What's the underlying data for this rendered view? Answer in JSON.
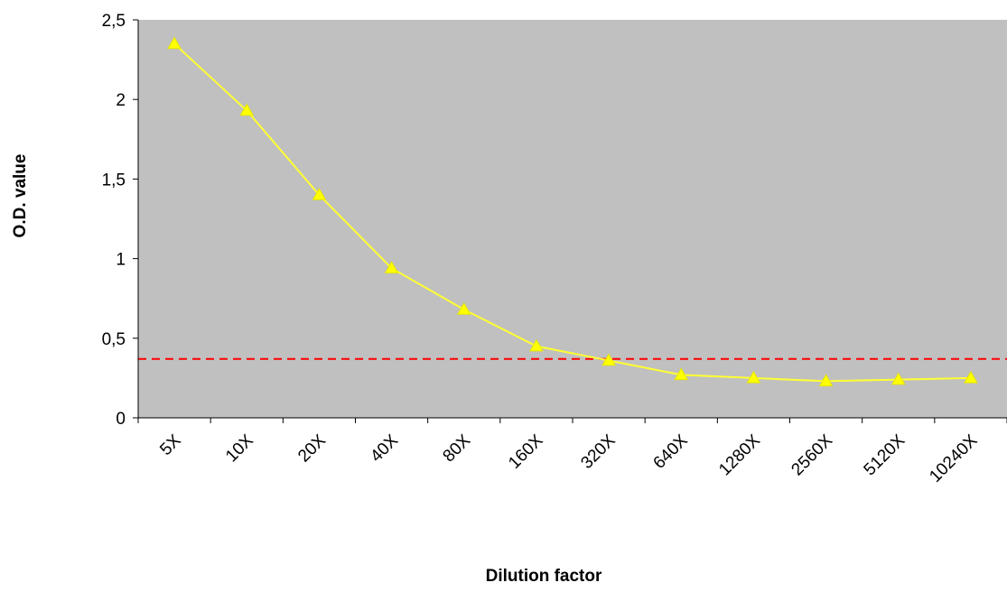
{
  "chart_data": {
    "type": "line",
    "categories": [
      "5X",
      "10X",
      "20X",
      "40X",
      "80X",
      "160X",
      "320X",
      "640X",
      "1280X",
      "2560X",
      "5120X",
      "10240X"
    ],
    "values": [
      2.35,
      1.93,
      1.4,
      0.94,
      0.68,
      0.45,
      0.36,
      0.27,
      0.25,
      0.23,
      0.24,
      0.25
    ],
    "xlabel": "Dilution factor",
    "ylabel": "O.D. value",
    "ylim": [
      0,
      2.5
    ],
    "yticks": [
      0,
      0.5,
      1,
      1.5,
      2,
      2.5
    ],
    "ytick_labels": [
      "0",
      "0,5",
      "1",
      "1,5",
      "2",
      "2,5"
    ],
    "cutoff": 0.37,
    "grid": false,
    "colors": {
      "plot_background": "#c0c0c0",
      "series_line": "#ffff33",
      "marker": "#ffff00",
      "cutoff_line": "#ff0000"
    }
  }
}
